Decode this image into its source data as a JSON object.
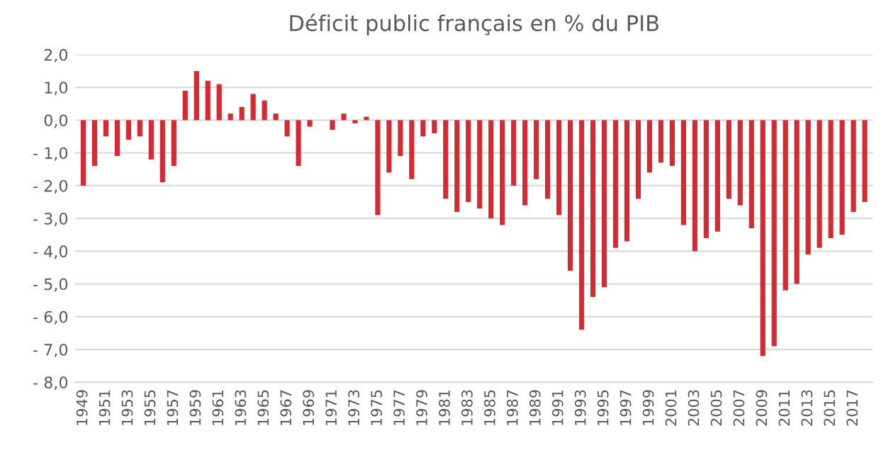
{
  "chart_data": {
    "type": "bar",
    "title": "Déficit public français en % du PIB",
    "categories": [
      "1949",
      null,
      "1951",
      null,
      "1953",
      null,
      "1955",
      null,
      "1957",
      null,
      "1959",
      null,
      "1961",
      null,
      "1963",
      null,
      "1965",
      null,
      "1967",
      null,
      "1969",
      null,
      "1971",
      null,
      "1973",
      null,
      "1975",
      null,
      "1977",
      null,
      "1979",
      null,
      "1981",
      null,
      "1983",
      null,
      "1985",
      null,
      "1987",
      null,
      "1989",
      null,
      "1991",
      null,
      "1993",
      null,
      "1995",
      null,
      "1997",
      null,
      "1999",
      null,
      "2001",
      null,
      "2003",
      null,
      "2005",
      null,
      "2007",
      null,
      "2009",
      null,
      "2011",
      null,
      "2013",
      null,
      "2015",
      null,
      "2017",
      null
    ],
    "values": [
      -2.0,
      -1.4,
      -0.5,
      -1.1,
      -0.6,
      -0.5,
      -1.2,
      -1.9,
      -1.4,
      0.9,
      1.5,
      1.2,
      1.1,
      0.2,
      0.4,
      0.8,
      0.6,
      0.2,
      -0.5,
      -1.4,
      -0.2,
      0.0,
      -0.3,
      0.2,
      -0.1,
      0.1,
      -2.9,
      -1.6,
      -1.1,
      -1.8,
      -0.5,
      -0.4,
      -2.4,
      -2.8,
      -2.5,
      -2.7,
      -3.0,
      -3.2,
      -2.0,
      -2.6,
      -1.8,
      -2.4,
      -2.9,
      -4.6,
      -6.4,
      -5.4,
      -5.1,
      -3.9,
      -3.7,
      -2.4,
      -1.6,
      -1.3,
      -1.4,
      -3.2,
      -4.0,
      -3.6,
      -3.4,
      -2.4,
      -2.6,
      -3.3,
      -7.2,
      -6.9,
      -5.2,
      -5.0,
      -4.1,
      -3.9,
      -3.6,
      -3.5,
      -2.8,
      -2.5
    ],
    "color": "#d42a32",
    "ylim": [
      -8.0,
      2.0
    ],
    "yticks": [
      {
        "value": -8,
        "label": "- 8,0"
      },
      {
        "value": -7,
        "label": "- 7,0"
      },
      {
        "value": -6,
        "label": "- 6,0"
      },
      {
        "value": -5,
        "label": "- 5,0"
      },
      {
        "value": -4,
        "label": "- 4,0"
      },
      {
        "value": -3,
        "label": "- 3,0"
      },
      {
        "value": -2,
        "label": "- 2,0"
      },
      {
        "value": -1,
        "label": "- 1,0"
      },
      {
        "value": 0,
        "label": "0,0"
      },
      {
        "value": 1,
        "label": "1,0"
      },
      {
        "value": 2,
        "label": "2,0"
      }
    ],
    "grid": "y"
  }
}
